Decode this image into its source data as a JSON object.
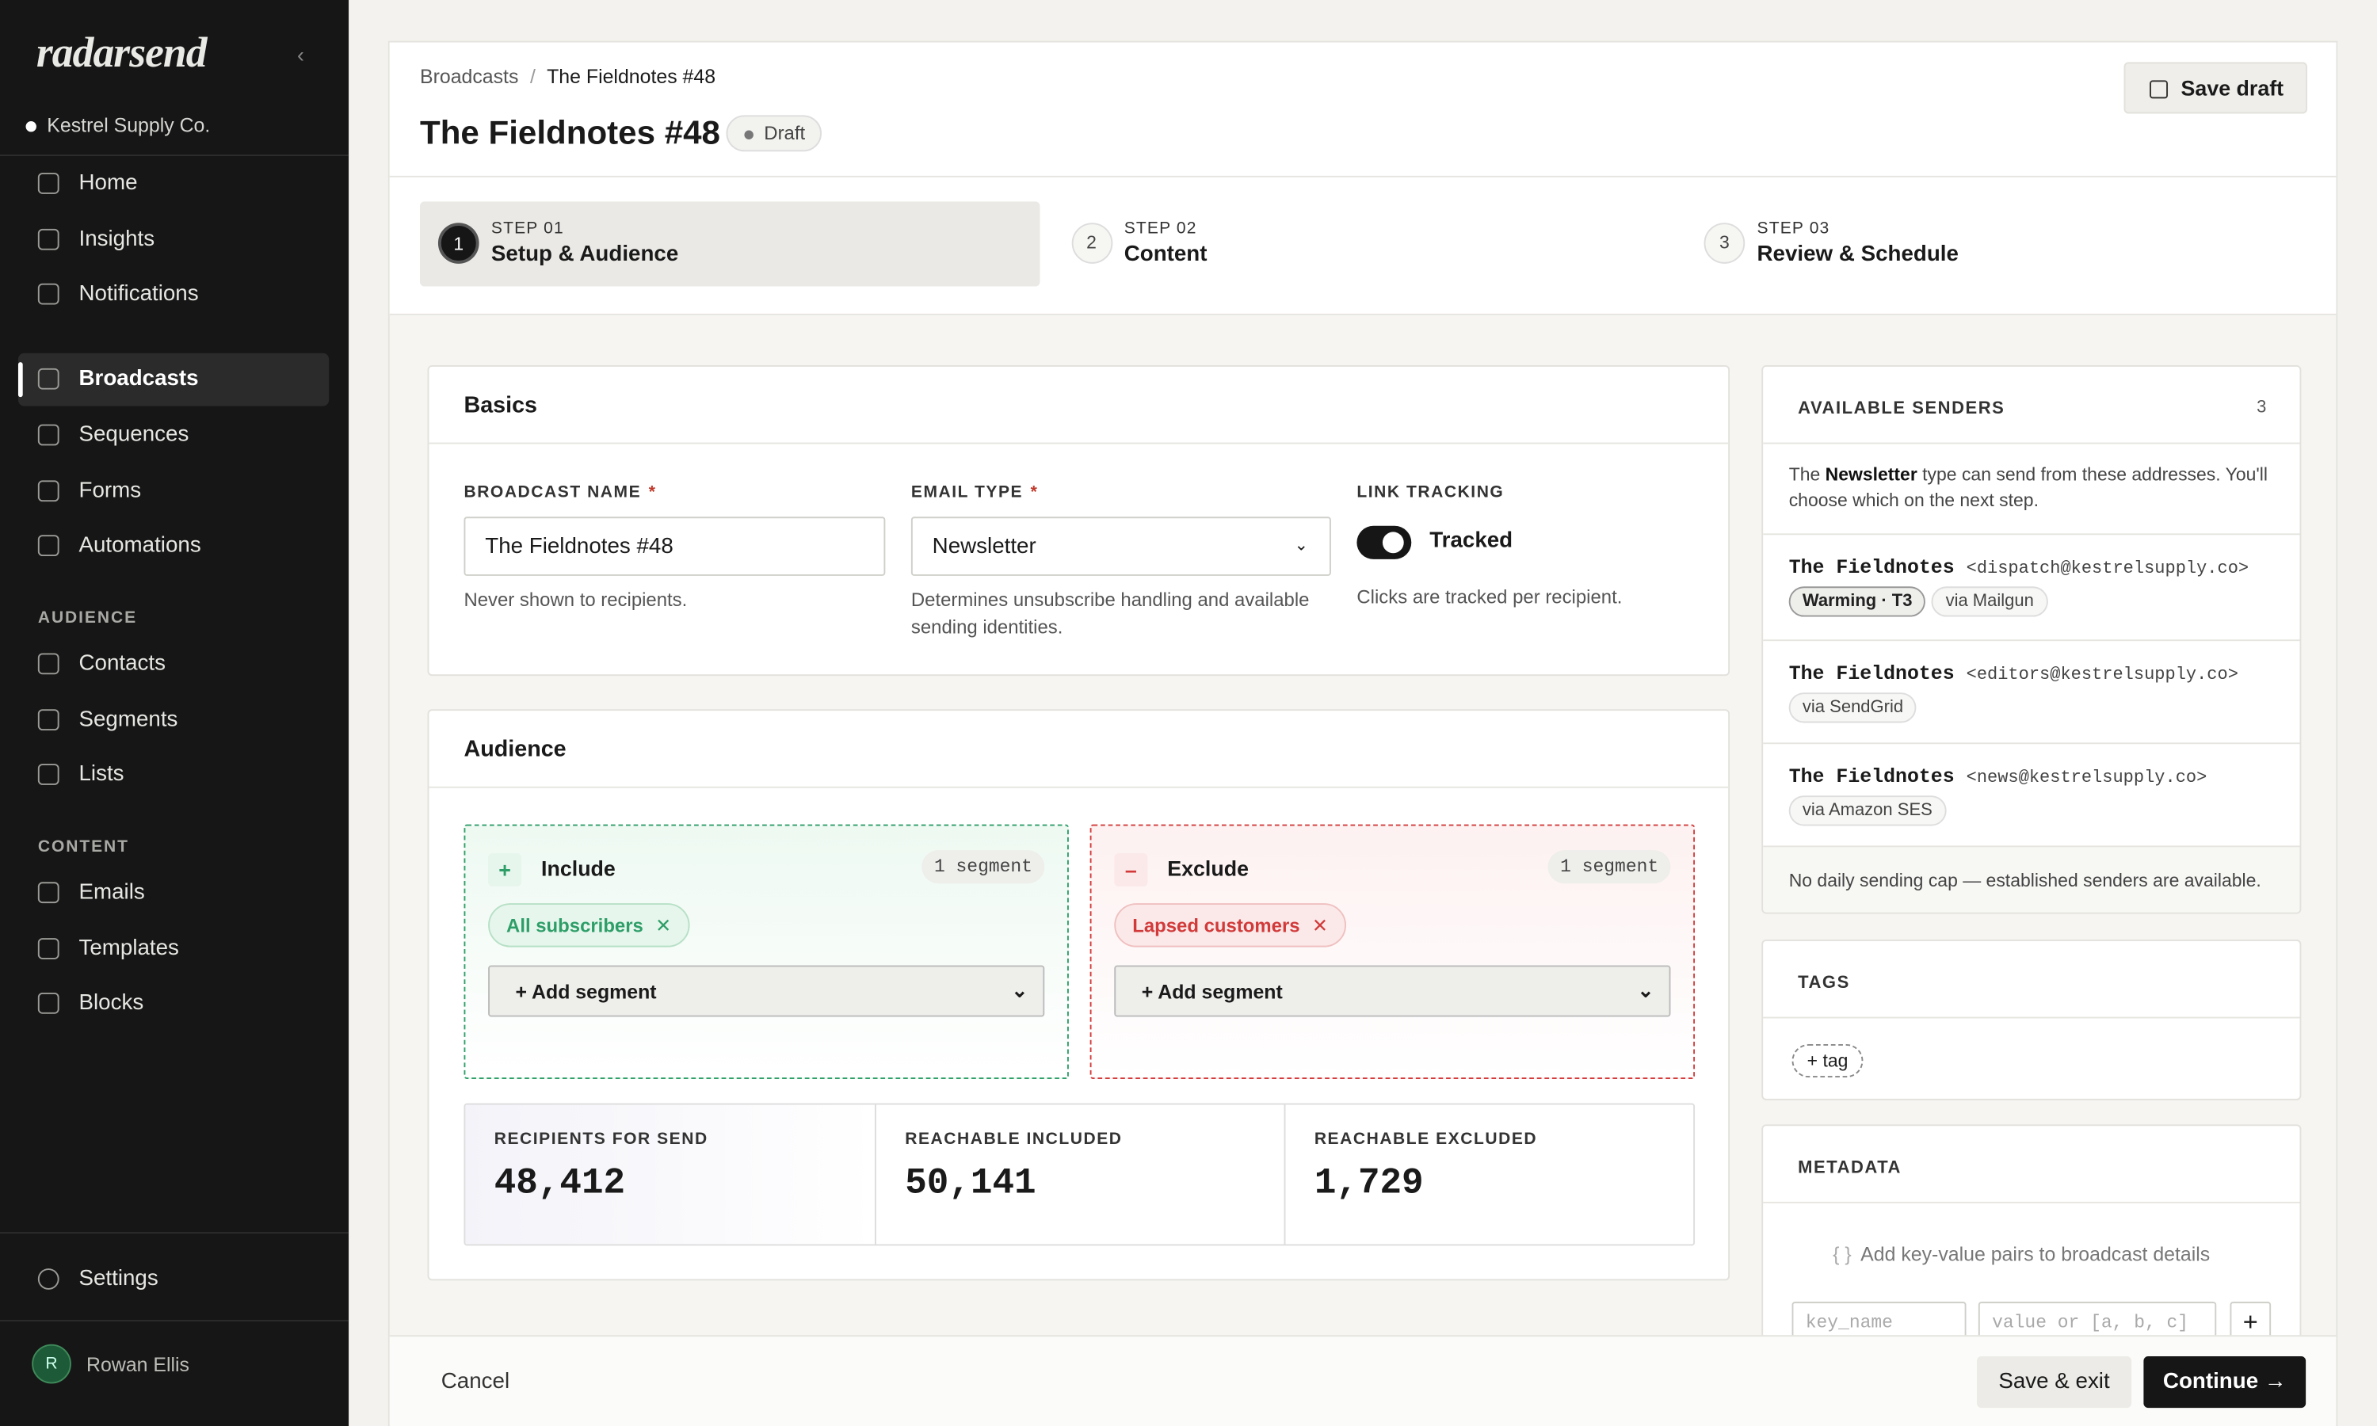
{
  "sidebar": {
    "brand": "radarsend",
    "workspace": "Kestrel Supply Co.",
    "nav": [
      "Home",
      "Insights",
      "Notifications",
      "Broadcasts",
      "Sequences",
      "Forms",
      "Automations"
    ],
    "sections": [
      {
        "title": "AUDIENCE",
        "items": [
          "Contacts",
          "Segments",
          "Lists"
        ]
      },
      {
        "title": "CONTENT",
        "items": [
          "Emails",
          "Templates",
          "Blocks"
        ]
      }
    ],
    "settings": "Settings",
    "user": {
      "initial": "R",
      "name": "Rowan Ellis"
    }
  },
  "header": {
    "breadcrumb": [
      "Broadcasts",
      "The Fieldnotes #48"
    ],
    "separator": "/",
    "title": "The Fieldnotes #48",
    "status": "Draft",
    "save_draft": "Save draft"
  },
  "steps": [
    {
      "number": "1",
      "label": "STEP 01",
      "title": "Setup & Audience"
    },
    {
      "number": "2",
      "label": "STEP 02",
      "title": "Content"
    },
    {
      "number": "3",
      "label": "STEP 03",
      "title": "Review & Schedule"
    }
  ],
  "basics": {
    "title": "Basics",
    "required": "*",
    "broadcast_name": {
      "label": "BROADCAST NAME",
      "value": "The Fieldnotes #48",
      "help": "Never shown to recipients."
    },
    "email_type": {
      "label": "EMAIL TYPE",
      "value": "Newsletter",
      "help": "Determines unsubscribe handling and available sending identities."
    },
    "link_tracking": {
      "label": "LINK TRACKING",
      "value": "Tracked",
      "help": "Clicks are tracked per recipient."
    }
  },
  "audience": {
    "title": "Audience",
    "include": {
      "icon": "+",
      "title": "Include",
      "count": "1 segment",
      "chip": "All subscribers",
      "add": "+ Add segment"
    },
    "exclude": {
      "icon": "–",
      "title": "Exclude",
      "count": "1 segment",
      "chip": "Lapsed customers",
      "add": "+ Add segment"
    },
    "stats": [
      {
        "label": "RECIPIENTS FOR SEND",
        "value": "48,412"
      },
      {
        "label": "REACHABLE INCLUDED",
        "value": "50,141"
      },
      {
        "label": "REACHABLE EXCLUDED",
        "value": "1,729"
      }
    ]
  },
  "senders": {
    "title": "AVAILABLE SENDERS",
    "count": "3",
    "intro": [
      "The ",
      "Newsletter",
      " type can send from these addresses. You'll choose which on the next step."
    ],
    "list": [
      {
        "name": "The Fieldnotes",
        "address": "<dispatch@kestrelsupply.co>",
        "tags": [
          "Warming · T3",
          "via Mailgun"
        ]
      },
      {
        "name": "The Fieldnotes",
        "address": "<editors@kestrelsupply.co>",
        "tags": [
          "via SendGrid"
        ]
      },
      {
        "name": "The Fieldnotes",
        "address": "<news@kestrelsupply.co>",
        "tags": [
          "via Amazon SES"
        ]
      }
    ],
    "footer": "No daily sending cap — established senders are available."
  },
  "tags": {
    "title": "TAGS",
    "add": "+ tag"
  },
  "metadata": {
    "title": "METADATA",
    "hint": "Add key-value pairs to broadcast details",
    "braces": "{ }",
    "key_placeholder": "key_name",
    "value_placeholder": "value or [a, b, c]",
    "add": "+"
  },
  "footer": {
    "cancel": "Cancel",
    "save_exit": "Save & exit",
    "continue": "Continue →"
  }
}
